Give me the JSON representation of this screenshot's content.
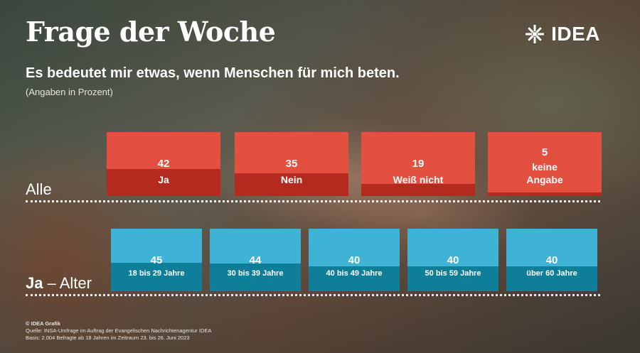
{
  "header": {
    "title": "Frage der Woche",
    "logo_text": "IDEA",
    "subtitle": "Es bedeutet mir etwas, wenn Menschen für mich beten.",
    "unit_note": "(Angaben in Prozent)"
  },
  "chart_data": [
    {
      "type": "bar",
      "group_label": "Alle",
      "categories": [
        "Ja",
        "Nein",
        "Weiß nicht",
        "keine Angabe"
      ],
      "values": [
        42,
        35,
        19,
        5
      ],
      "ylim": [
        0,
        100
      ],
      "colors": {
        "box": "#e4503f",
        "fill": "#b52a1e"
      }
    },
    {
      "type": "bar",
      "group_label_bold": "Ja",
      "group_label_rest": " – Alter",
      "categories": [
        "18 bis 29 Jahre",
        "30 bis 39 Jahre",
        "40 bis 49 Jahre",
        "50 bis 59 Jahre",
        "über 60 Jahre"
      ],
      "values": [
        45,
        44,
        40,
        40,
        40
      ],
      "ylim": [
        0,
        100
      ],
      "colors": {
        "box": "#3fb3d6",
        "fill": "#0f7e98"
      }
    }
  ],
  "footer": {
    "credit": "© IDEA Grafik",
    "source": "Quelle: INSA-Umfrage im Auftrag der Evangelischen Nachrichtenagentur IDEA",
    "basis": "Basis: 2.004 Befragte ab 18 Jahren im Zeitraum 23. bis 26. Juni 2023"
  }
}
